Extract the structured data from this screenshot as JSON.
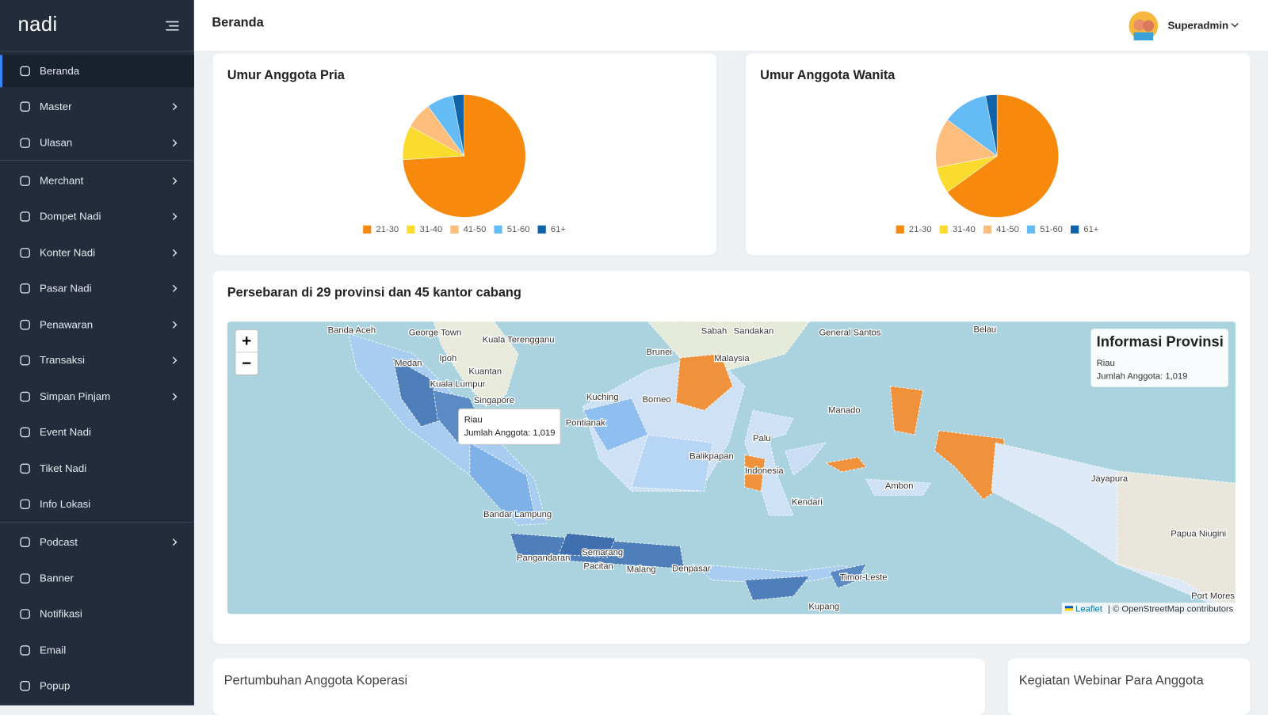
{
  "sidebar": {
    "brand": "nadi",
    "menu": [
      "Beranda",
      "Master",
      "Ulasan",
      "Merchant",
      "Dompet Nadi",
      "Konter Nadi",
      "Pasar Nadi",
      "Penawaran",
      "Transaksi",
      "Simpan Pinjam",
      "Event Nadi",
      "Tiket Nadi",
      "Info Lokasi",
      "Podcast",
      "Banner",
      "Notifikasi",
      "Email",
      "Popup"
    ]
  },
  "header": {
    "title": "Beranda",
    "user": "Superadmin"
  },
  "chart_data": [
    {
      "type": "pie",
      "title": "Umur Anggota Pria",
      "categories": [
        "21-30",
        "31-40",
        "41-50",
        "51-60",
        "61+"
      ],
      "values": [
        74,
        9,
        7,
        7,
        3
      ],
      "colors": [
        "#f7890c",
        "#fbdc2e",
        "#fdbd7d",
        "#64bbf6",
        "#0f63aa"
      ]
    },
    {
      "type": "pie",
      "title": "Umur Anggota Wanita",
      "categories": [
        "21-30",
        "31-40",
        "41-50",
        "51-60",
        "61+"
      ],
      "values": [
        65,
        7,
        13,
        12,
        3
      ],
      "colors": [
        "#f7890c",
        "#fbdc2e",
        "#fdbd7d",
        "#64bbf6",
        "#0f63aa"
      ]
    }
  ],
  "map": {
    "title": "Persebaran di 29 provinsi dan 45 kantor cabang",
    "zoom_in": "+",
    "zoom_out": "−",
    "tooltip": {
      "province": "Riau",
      "members": "Jumlah Anggota: 1,019"
    },
    "info": {
      "title": "Informasi Provinsi",
      "province": "Riau",
      "members": "Jumlah Anggota: 1,019"
    },
    "attribution": {
      "leaflet": "Leaflet",
      "osm": "| © OpenStreetMap contributors"
    },
    "labels": [
      "Banda Aceh",
      "George Town",
      "Kuala Terengganu",
      "Medan",
      "Ipoh",
      "Kuantan",
      "Kuala Lumpur",
      "Singapore",
      "Brunei",
      "Malaysia",
      "Sabah",
      "Sandakan",
      "General Santos",
      "Belau",
      "Kuching",
      "Borneo",
      "Pontianak",
      "Manado",
      "Palu",
      "Balikpapan",
      "Indonesia",
      "Ambon",
      "Jayapura",
      "Kendari",
      "Bandar Lampung",
      "Semarang",
      "Malang",
      "Denpasar",
      "Timor-Leste",
      "Kupang",
      "Port Mores",
      "Papua Niugini",
      "Pangandaran",
      "Pacitan"
    ]
  },
  "panels": {
    "growth": "Pertumbuhan Anggota Koperasi",
    "webinar": "Kegiatan Webinar Para Anggota"
  }
}
